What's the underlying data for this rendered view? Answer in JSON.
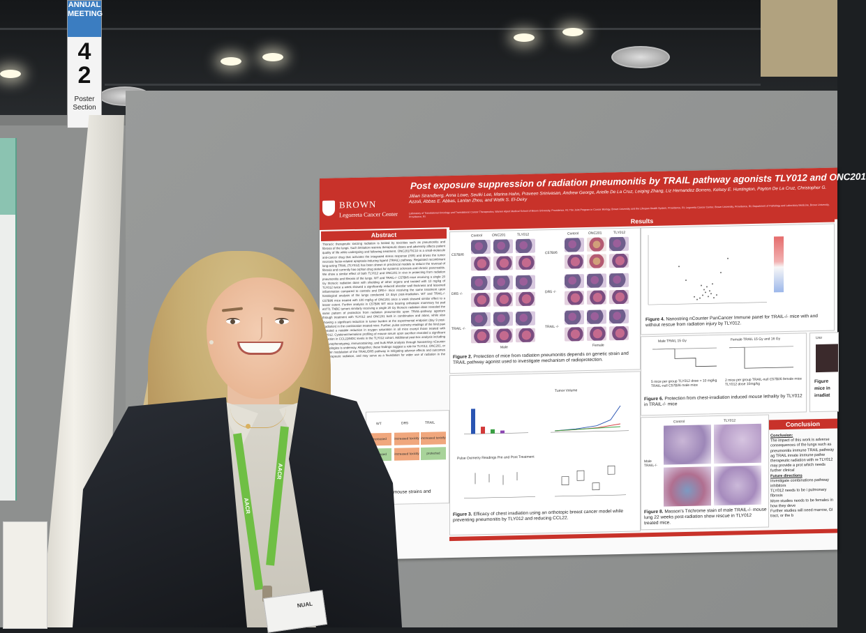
{
  "scene": {
    "description_colors": {
      "poster_red": "#c8322a",
      "wall_gray": "#8e908f",
      "lanyard_green": "#6fbf44",
      "sign_blue": "#3b7dc1"
    }
  },
  "sign": {
    "meeting": "ANNUAL MEETING",
    "number_1": "4",
    "number_2": "2",
    "label": "Poster Section"
  },
  "poster": {
    "logo_name": "BROWN",
    "logo_center": "Legorreta Cancer Center",
    "title": "Post exposure suppression of radiation pneumonitis by TRAIL pathway agonists TLY012 and ONC201",
    "authors": "Jillian Strandberg, Anna Lowe, Seulki Lee, Marina Hahn, Praveen Srinivasan, Andrew George, Arielle De La Cruz, Leiqing Zhang, Liz Hernandez Borrero, Kelsey E. Huntington, Payton De La Cruz, Christopher G. Azzoli, Abbas E. Abbas, Lanlan Zhou, and Wafik S. El-Deiry",
    "affiliations": "Laboratory of Translational Oncology and Translational Cancer Therapeutics, Warren Alpert Medical School of Brown University, Providence, RI; The Joint Program in Cancer Biology, Brown University and the Lifespan Health System, Providence, RI; Legorreta Cancer Center, Brown University, Providence, RI; Department of Pathology and Laboratory Medicine, Brown University, Providence, RI",
    "abstract_header": "Abstract",
    "abstract_text": "Thoracic therapeutic ionizing radiation is limited by toxicities such as pneumonitis and fibrosis of the lungs. Such limitation restricts therapeutic doses and adversely affects patient quality of life while undergoing and following treatment. ONC201/TIC10 is a small-molecule anti-cancer drug that activates the integrated stress response (ISR) and drives the tumor necrosis factor-related apoptosis-inducing ligand (TRAIL) pathway. Regulated recombinant long-acting TRAIL (TLY012) has been shown in preclinical models to reduce the reversal of fibrosis and currently has orphan drug status for systemic sclerosis and chronic pancreatitis. We show a similar effect of both TLY012 and ONC201 in vivo in protecting from radiation pneumonitis and fibrosis of the lungs. WT and TRAIL-/- C57Bl/6 mice receiving a single 20 Gy thoracic radiation dose with shielding of other organs and treated with 10 mg/kg of TLY012 twice a week showed a significantly reduced alveolar wall thickness and lessened inflammation compared to controls and DR5-/- mice receiving the same treatment upon histological analysis of the lungs conducted 13 days post-irradiation. WT and TRAIL-/- C57Bl/6 mice treated with 100 mg/kg of ONC201 once a week showed similar effect to a lesser extent. Further analysis in C57Bl/6 WT mice bearing orthotopic mammary fat pad e0771 TNBC tumors similarly receiving a single 20 Gy thoracic radiation dose revealed the same pattern of protection from radiation pneumonitis upon TRAIL-pathway agonism through treatment with TLY012 and ONC201 both in combination and alone, while also showing a significant reduction in tumor burden at the experimental endpoint (day 9 post-irradiation) in the combination treated mice. Further, pulse oximetry readings of the hind paw revealed a notable reduction in oxygen saturation in all mice except those treated with TLY012. Cytokine/chemokine profiling of mouse serum upon sacrifice revealed a significant reduction in CCL22/MDC levels in the TLY012 cohort. Additional post-hoc analysis including immunophenotyping, immunostaining, and bulk RNA analysis through Nanostring nCounter technologies is underway. Altogether, these findings suggest a role for TLY012, ONC201, or broader modulation of the TRAIL/DR5 pathway in mitigating adverse effects and outcomes of therapeutic radiation, and may serve as a foundation for wider use of radiation in the clinic.",
    "results_header": "Results",
    "fig2": {
      "col_control": "Control",
      "col_onc201": "ONC201",
      "col_tly012": "TLY012",
      "row_1": "C57Bl/6",
      "row_2": "DR5 -/-",
      "row_3": "TRAIL -/-",
      "male": "Male",
      "female": "Female",
      "caption_bold": "Figure 2.",
      "caption": "Protection of mice from radiation pneumonitis depends on genetic strain and TRAIL pathway agonist used to investigate mechanism of radioprotection."
    },
    "fig3": {
      "caption_bold": "Figure 3.",
      "caption": "Efficacy of chest irradiation using an orthotopic breast cancer model while preventing pneumonitis by TLY012 and reducing CCL22.",
      "tumor_volume": "Tumor Volume",
      "pulse_ox": "Pulse Oximetry Readings Pre and Post Treatment"
    },
    "fig4": {
      "caption_bold": "Figure 4.",
      "caption": "Nanostring nCounter PanCancer Immune panel for TRAIL-/- mice with and without rescue from radiation injury by TLY012."
    },
    "fig6": {
      "male_title": "Male TRAIL 15 Gy",
      "female_title": "Female TRAIL 15 Gy and 16 Gy",
      "male_note": "5 mice per group TLY012 dose = 10 mg/kg TRAIL-null C57Bl/6 male mice",
      "female_note": "2 mice per group TRAIL-null C57Bl/6 female mice TLY012 dose 10mg/kg",
      "caption_bold": "Figure 6.",
      "caption": "Protection from chest-irradiation induced mouse lethality by TLY012 in TRAIL-/- mice"
    },
    "fig8": {
      "col_control": "Control",
      "col_tly012": "TLY012",
      "row_label": "Male TRAIL-/-",
      "caption_bold": "Figure 8.",
      "caption": "Masson's Trichrome stain of male TRAIL-/- mouse lung 22 weeks post-radiation show rescue in TLY012 treated mice."
    },
    "table": {
      "col_1": "WT",
      "col_2": "DR5",
      "col_3": "TRAIL",
      "cells": [
        "increased toxicity",
        "increased toxicity",
        "increased toxicity",
        "increased toxicity",
        "increased toxicity",
        "protected"
      ],
      "caption_tail": "cluding mouse strains and"
    },
    "conclusion": {
      "header": "Conclusion",
      "subheader": "Conclusion:",
      "text": "The impact of this work is adverse consequences of the lungs such as pneumonitis immune TRAIL pathway ag TRAIL innate immune pathw therapeutic radiation with re TLY012 may provide a prot which needs further clinical",
      "future_header": "Future directions",
      "future_items": [
        "Investigate combinations pathway inhibitors",
        "TLY012 needs to be i pulmonary fibrosis",
        "More studies needs to be females in how they deve",
        "Further studies will need marrow, GI tract, or the b"
      ]
    },
    "right_edge": {
      "fig_label": "Figure",
      "line1": "mice in",
      "line2": "irradiat",
      "top": "Unir"
    }
  },
  "lanyard": {
    "text": "AACR",
    "badge_text": "NUAL"
  }
}
